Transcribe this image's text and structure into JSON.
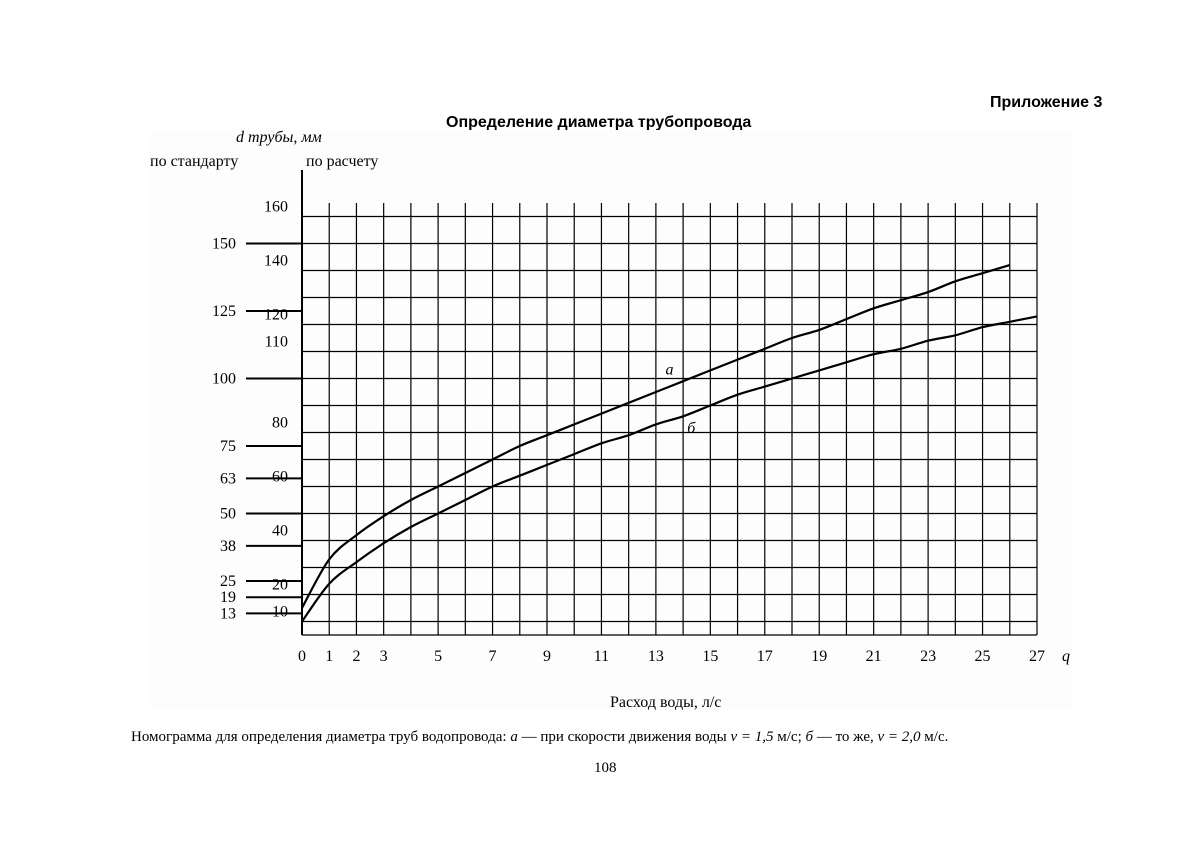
{
  "page": {
    "appendix": "Приложение 3",
    "title": "Определение диаметра трубопровода",
    "caption": {
      "prefix": "Номограмма для определения диаметра труб водопровода: ",
      "a_letter": "а",
      "a_text": " — при скорости движения воды ",
      "a_velocity": "v = 1,5",
      "a_unit": " м/с; ",
      "b_letter": "б",
      "b_text": " — то же, ",
      "b_velocity": "v = 2,0",
      "b_unit": " м/с."
    },
    "page_number": "108"
  },
  "chart_data": {
    "type": "line",
    "ylabel_main": "d трубы, мм",
    "ylabel_standard": "по стандарту",
    "ylabel_calc": "по расчету",
    "xlabel": "Расход воды, л/с",
    "x_axis_symbol": "q",
    "xlim": [
      0,
      27
    ],
    "ylim": [
      5,
      165
    ],
    "x_tick_labels": [
      0,
      1,
      2,
      3,
      5,
      7,
      9,
      11,
      13,
      15,
      17,
      19,
      21,
      23,
      25,
      27
    ],
    "calc_diameter_ticks": [
      10,
      20,
      40,
      60,
      80,
      110,
      120,
      140,
      160
    ],
    "standard_diameters": [
      13,
      19,
      25,
      38,
      50,
      63,
      75,
      100,
      125,
      150
    ],
    "grid": true,
    "series": [
      {
        "name": "а",
        "x": [
          0,
          1,
          2,
          3,
          4,
          5,
          6,
          7,
          8,
          9,
          10,
          11,
          12,
          13,
          14,
          15,
          16,
          17,
          18,
          19,
          20,
          21,
          22,
          23,
          24,
          25,
          26
        ],
        "values": [
          15,
          33,
          42,
          49,
          55,
          60,
          65,
          70,
          75,
          79,
          83,
          87,
          91,
          95,
          99,
          103,
          107,
          111,
          115,
          118,
          122,
          126,
          129,
          132,
          136,
          139,
          142
        ]
      },
      {
        "name": "б",
        "x": [
          0,
          1,
          2,
          3,
          4,
          5,
          6,
          7,
          8,
          9,
          10,
          11,
          12,
          13,
          14,
          15,
          16,
          17,
          18,
          19,
          20,
          21,
          22,
          23,
          24,
          25,
          26,
          27
        ],
        "values": [
          10,
          24,
          32,
          39,
          45,
          50,
          55,
          60,
          64,
          68,
          72,
          76,
          79,
          83,
          86,
          90,
          94,
          97,
          100,
          103,
          106,
          109,
          111,
          114,
          116,
          119,
          121,
          123
        ]
      }
    ]
  }
}
